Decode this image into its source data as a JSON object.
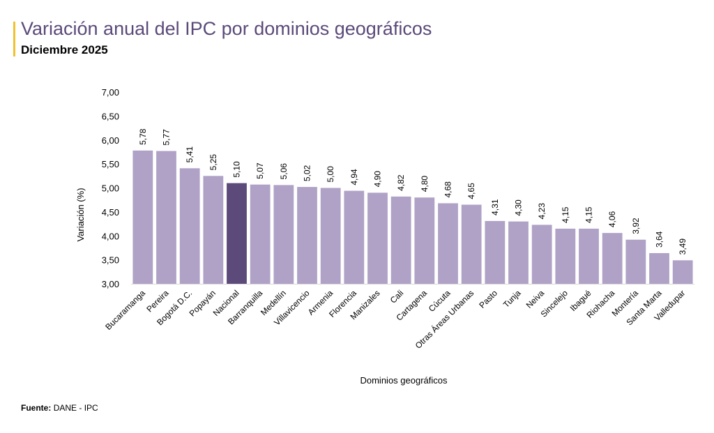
{
  "header": {
    "title": "Variación anual del IPC por dominios geográficos",
    "subtitle": "Diciembre 2025"
  },
  "source": {
    "label": "Fuente:",
    "text": "DANE - IPC"
  },
  "colors": {
    "bar": "#B0A2C6",
    "highlight": "#5C4A7B",
    "title": "#5B4A7A",
    "accent": "#F2C12E"
  },
  "chart_data": {
    "type": "bar",
    "title": "Variación anual del IPC por dominios geográficos",
    "xlabel": "Dominios geográficos",
    "ylabel": "Variación (%)",
    "ylim": [
      3.0,
      7.0
    ],
    "yticks": [
      "3,00",
      "3,50",
      "4,00",
      "4,50",
      "5,00",
      "5,50",
      "6,00",
      "6,50",
      "7,00"
    ],
    "ytick_values": [
      3.0,
      3.5,
      4.0,
      4.5,
      5.0,
      5.5,
      6.0,
      6.5,
      7.0
    ],
    "categories": [
      "Bucaramanga",
      "Pereira",
      "Bogotá D.C.",
      "Popayán",
      "Nacional",
      "Barranquilla",
      "Medellín",
      "Villavicencio",
      "Armenia",
      "Florencia",
      "Manizales",
      "Cali",
      "Cartagena",
      "Cúcuta",
      "Otras Áreas Urbanas",
      "Pasto",
      "Tunja",
      "Neiva",
      "Sincelejo",
      "Ibagué",
      "Riohacha",
      "Montería",
      "Santa Marta",
      "Valledupar"
    ],
    "values": [
      5.78,
      5.77,
      5.41,
      5.25,
      5.1,
      5.07,
      5.06,
      5.02,
      5.0,
      4.94,
      4.9,
      4.82,
      4.8,
      4.68,
      4.65,
      4.31,
      4.3,
      4.23,
      4.15,
      4.15,
      4.06,
      3.92,
      3.64,
      3.49
    ],
    "labels": [
      "5,78",
      "5,77",
      "5,41",
      "5,25",
      "5,10",
      "5,07",
      "5,06",
      "5,02",
      "5,00",
      "4,94",
      "4,90",
      "4,82",
      "4,80",
      "4,68",
      "4,65",
      "4,31",
      "4,30",
      "4,23",
      "4,15",
      "4,15",
      "4,06",
      "3,92",
      "3,64",
      "3,49"
    ],
    "highlight_category": "Nacional",
    "grid": false,
    "legend": "none"
  }
}
